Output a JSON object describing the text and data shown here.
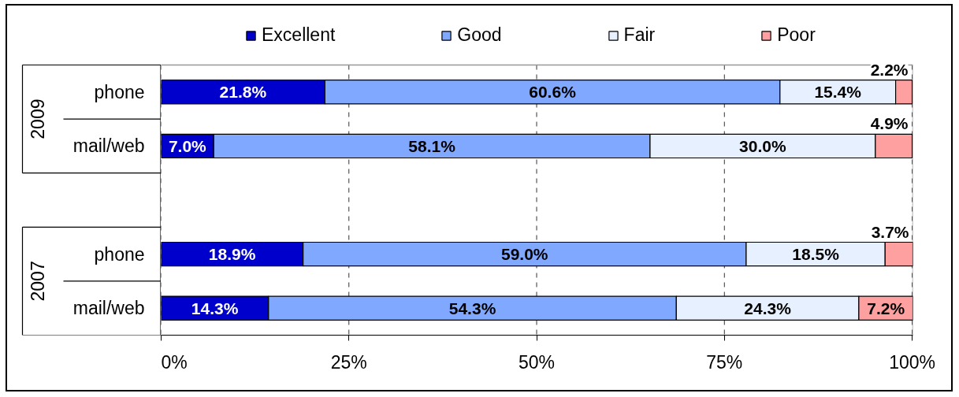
{
  "chart_data": {
    "type": "bar",
    "orientation": "horizontal",
    "stacked": true,
    "categories": [
      "phone",
      "mail/web",
      null,
      "phone",
      "mail/web"
    ],
    "series": [
      {
        "name": "Excellent",
        "color": "#0000cc",
        "values": [
          21.8,
          7.0,
          null,
          18.9,
          14.3
        ],
        "value_labels": [
          "21.8%",
          "7.0%",
          null,
          "18.9%",
          "14.3%"
        ]
      },
      {
        "name": "Good",
        "color": "#80a8ff",
        "values": [
          60.6,
          58.1,
          null,
          59.0,
          54.3
        ],
        "value_labels": [
          "60.6%",
          "58.1%",
          null,
          "59.0%",
          "54.3%"
        ]
      },
      {
        "name": "Fair",
        "color": "#e6f0ff",
        "values": [
          15.4,
          30.0,
          null,
          18.5,
          24.3
        ],
        "value_labels": [
          "15.4%",
          "30.0%",
          null,
          "18.5%",
          "24.3%"
        ]
      },
      {
        "name": "Poor",
        "color": "#ffa0a0",
        "values": [
          2.2,
          4.9,
          null,
          3.7,
          7.2
        ],
        "value_labels": [
          "2.2%",
          "4.9%",
          null,
          "3.7%",
          "7.2%"
        ]
      }
    ],
    "annotations": [
      "2009",
      "2007"
    ],
    "xlim": [
      0,
      100.1
    ],
    "xticks": [
      {
        "value": 0,
        "label": "0%"
      },
      {
        "value": 25,
        "label": "25%"
      },
      {
        "value": 50,
        "label": "50%"
      },
      {
        "value": 75,
        "label": "75%"
      },
      {
        "value": 100,
        "label": "100%"
      }
    ],
    "grid": "x",
    "legend": "top"
  }
}
